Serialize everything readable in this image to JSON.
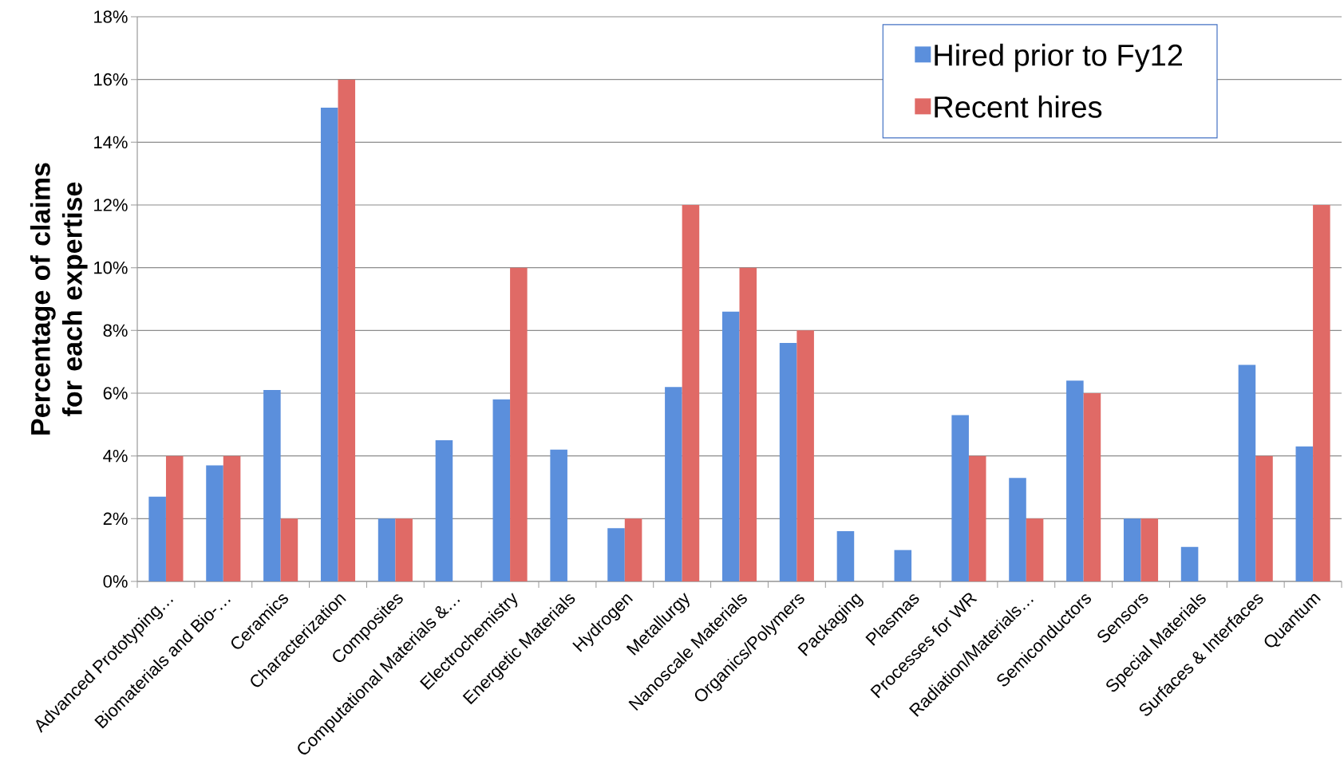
{
  "chart_data": {
    "type": "bar",
    "ylabel": "Percentage of claims for each expertise",
    "categories": [
      "Advanced Prototyping…",
      "Biomaterials and Bio-…",
      "Ceramics",
      "Characterization",
      "Composites",
      "Computational Materials &…",
      "Electrochemistry",
      "Energetic Materials",
      "Hydrogen",
      "Metallurgy",
      "Nanoscale Materials",
      "Organics/Polymers",
      "Packaging",
      "Plasmas",
      "Processes for WR",
      "Radiation/Materials…",
      "Semiconductors",
      "Sensors",
      "Special Materials",
      "Surfaces & Interfaces",
      "Quantum"
    ],
    "series": [
      {
        "name": "Hired prior to Fy12",
        "color": "#5b8fdc",
        "values": [
          2.7,
          3.7,
          6.1,
          15.1,
          2.0,
          4.5,
          5.8,
          4.2,
          1.7,
          6.2,
          8.6,
          7.6,
          1.6,
          1.0,
          5.3,
          3.3,
          6.4,
          2.0,
          1.1,
          6.9,
          4.3
        ]
      },
      {
        "name": "Recent hires",
        "color": "#e06a66",
        "values": [
          4,
          4,
          2,
          16,
          2,
          0,
          10,
          0,
          2,
          12,
          10,
          8,
          0,
          0,
          4,
          2,
          6,
          2,
          0,
          4,
          12
        ]
      }
    ],
    "ylim": [
      0,
      18
    ],
    "yticks": [
      {
        "value": 0,
        "label": "0%"
      },
      {
        "value": 2,
        "label": "2%"
      },
      {
        "value": 4,
        "label": "4%"
      },
      {
        "value": 6,
        "label": "6%"
      },
      {
        "value": 8,
        "label": "8%"
      },
      {
        "value": 10,
        "label": "10%"
      },
      {
        "value": 12,
        "label": "12%"
      },
      {
        "value": 14,
        "label": "14%"
      },
      {
        "value": 16,
        "label": "16%"
      },
      {
        "value": 18,
        "label": "18%"
      }
    ],
    "grid": "y",
    "legend": "top right"
  }
}
